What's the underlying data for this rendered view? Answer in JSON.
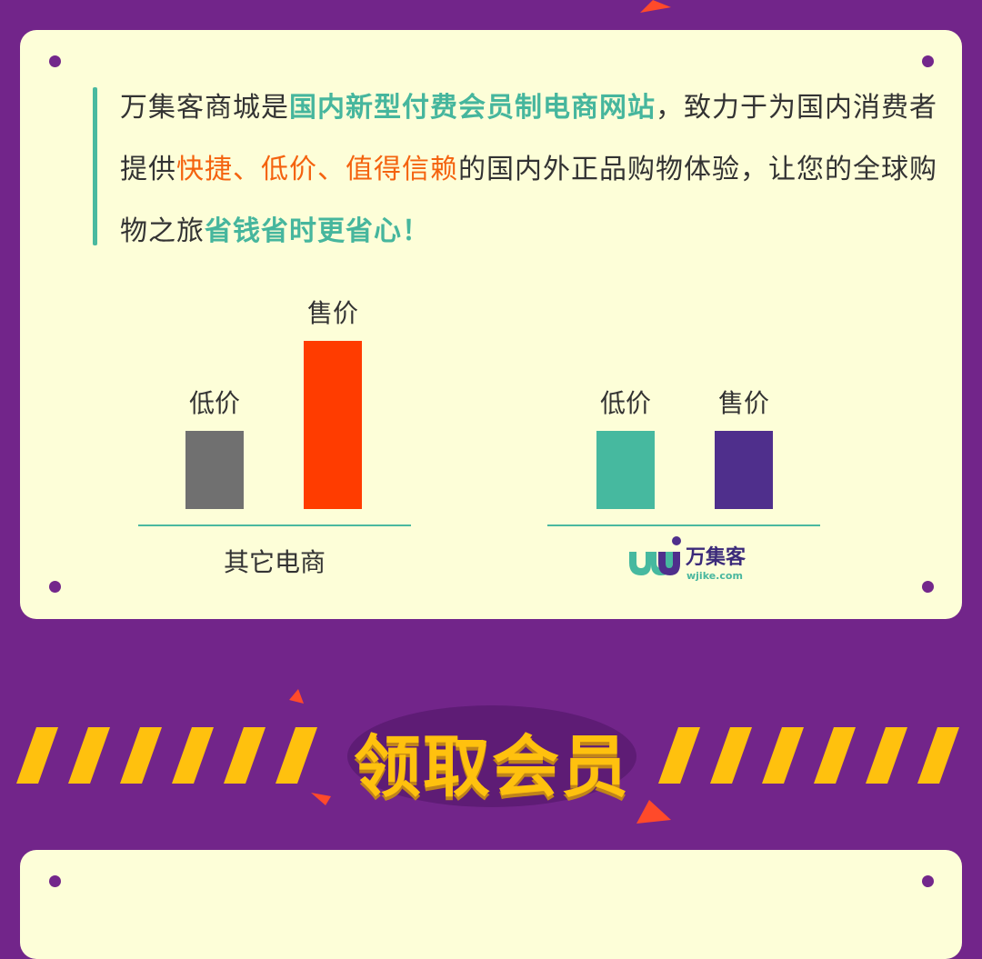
{
  "intro": {
    "t1": "万集客商城是",
    "t2": "国内新型付费会员制电商网站",
    "t3": "，致力于为国内消费者提供",
    "t4": "快捷、低价、值得信赖",
    "t5": "的国内外正品购物体验，让您的全球购物之旅",
    "t6": "省钱省时更省心！"
  },
  "chart_data": {
    "type": "bar",
    "groups": [
      {
        "name": "其它电商",
        "bars": [
          {
            "label": "低价",
            "value": 0.86,
            "color": "#707070"
          },
          {
            "label": "售价",
            "value": 1.85,
            "color": "#ff3c00"
          }
        ]
      },
      {
        "name": "万集客",
        "bars": [
          {
            "label": "低价",
            "value": 0.86,
            "color": "#46b99f"
          },
          {
            "label": "售价",
            "value": 0.86,
            "color": "#4f2f8c"
          }
        ]
      }
    ]
  },
  "logo": {
    "brand": "万集客",
    "url": "wjike.com"
  },
  "section": {
    "title": "领取会员"
  },
  "colors": {
    "bg": "#72258a",
    "card": "#fdfed8",
    "green": "#46b69d",
    "orange": "#f4630f",
    "yellow": "#ffc10e"
  }
}
